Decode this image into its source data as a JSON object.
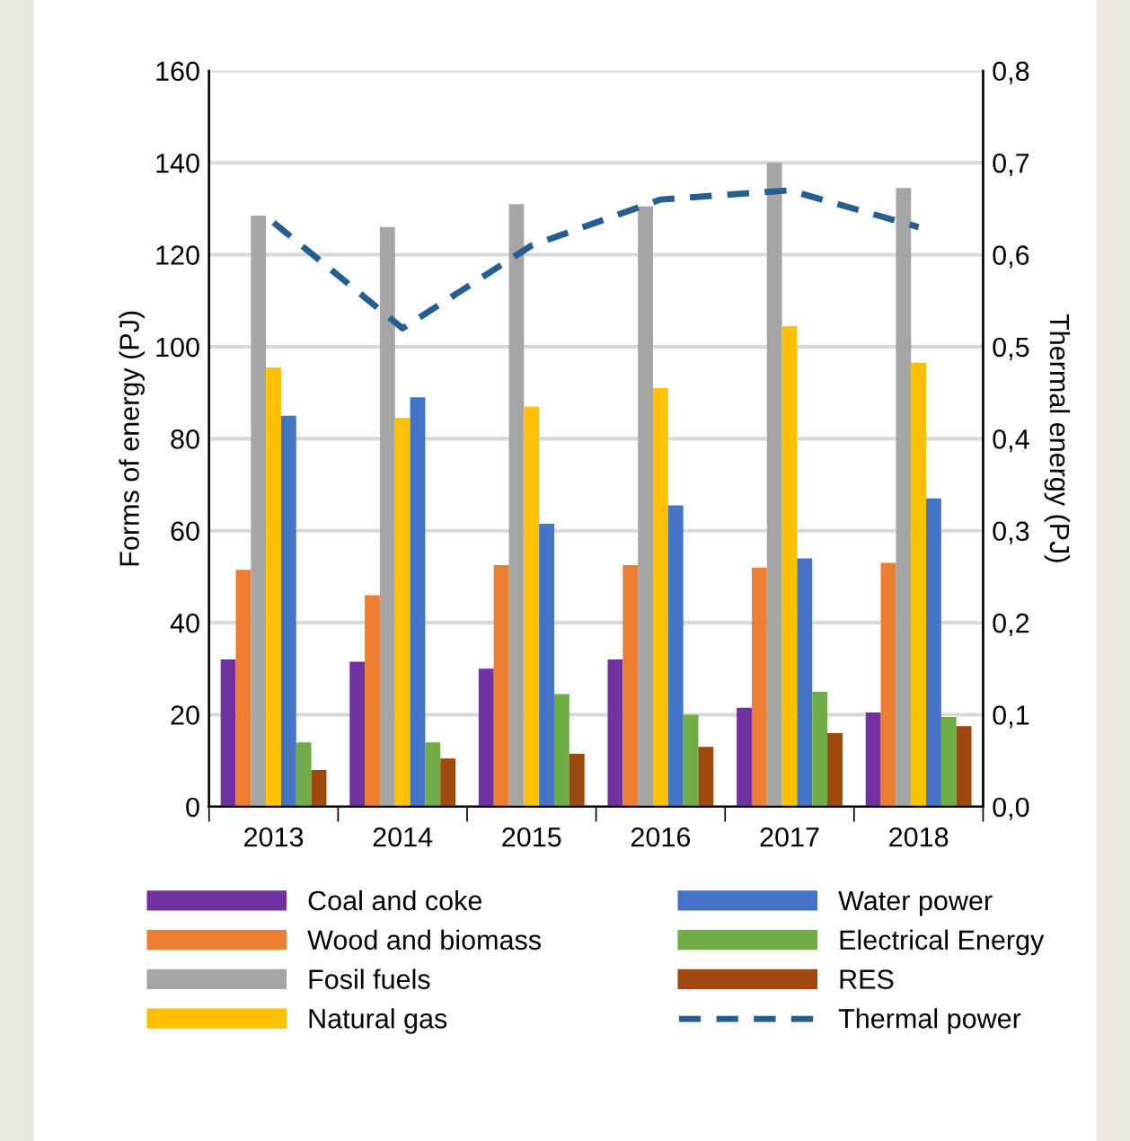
{
  "chart_data": {
    "type": "bar",
    "categories": [
      "2013",
      "2014",
      "2015",
      "2016",
      "2017",
      "2018"
    ],
    "ylabel": "Forms of energy (PJ)",
    "y2label": "Thermal energy (PJ)",
    "ylim": [
      0,
      160
    ],
    "yticks": [
      0,
      20,
      40,
      60,
      80,
      100,
      120,
      140,
      160
    ],
    "y2lim": [
      0,
      0.8
    ],
    "y2ticks": [
      {
        "value": 0,
        "label": "0,0"
      },
      {
        "value": 0.1,
        "label": "0,1"
      },
      {
        "value": 0.2,
        "label": "0,2"
      },
      {
        "value": 0.3,
        "label": "0,3"
      },
      {
        "value": 0.4,
        "label": "0,4"
      },
      {
        "value": 0.5,
        "label": "0,5"
      },
      {
        "value": 0.6,
        "label": "0,6"
      },
      {
        "value": 0.7,
        "label": "0,7"
      },
      {
        "value": 0.8,
        "label": "0,8"
      }
    ],
    "grid": "y",
    "legend": "bottom",
    "series": [
      {
        "name": "Coal and coke",
        "color": "#7030a0",
        "values": [
          32,
          31.5,
          30,
          32,
          21.5,
          20.5
        ]
      },
      {
        "name": "Wood and biomass",
        "color": "#ed7d31",
        "values": [
          51.5,
          46,
          52.5,
          52.5,
          52,
          53
        ]
      },
      {
        "name": "Fosil fuels",
        "color": "#a5a5a5",
        "values": [
          128.5,
          126,
          131,
          130.5,
          140,
          134.5
        ]
      },
      {
        "name": "Natural gas",
        "color": "#ffc000",
        "values": [
          95.5,
          84.5,
          87,
          91,
          104.5,
          96.5
        ]
      },
      {
        "name": "Water power",
        "color": "#4472c4",
        "values": [
          85,
          89,
          61.5,
          65.5,
          54,
          67
        ]
      },
      {
        "name": "Electrical Energy",
        "color": "#70ad47",
        "values": [
          14,
          14,
          24.5,
          20,
          25,
          19.5
        ]
      },
      {
        "name": "RES",
        "color": "#9e480e",
        "values": [
          8,
          10.5,
          11.5,
          13,
          16,
          17.5
        ]
      },
      {
        "name": "Thermal power",
        "color": "#255e91",
        "type": "line",
        "axis": "y2",
        "line_style": "dashed",
        "values": [
          0.635,
          0.52,
          0.61,
          0.66,
          0.67,
          0.63
        ]
      }
    ]
  }
}
